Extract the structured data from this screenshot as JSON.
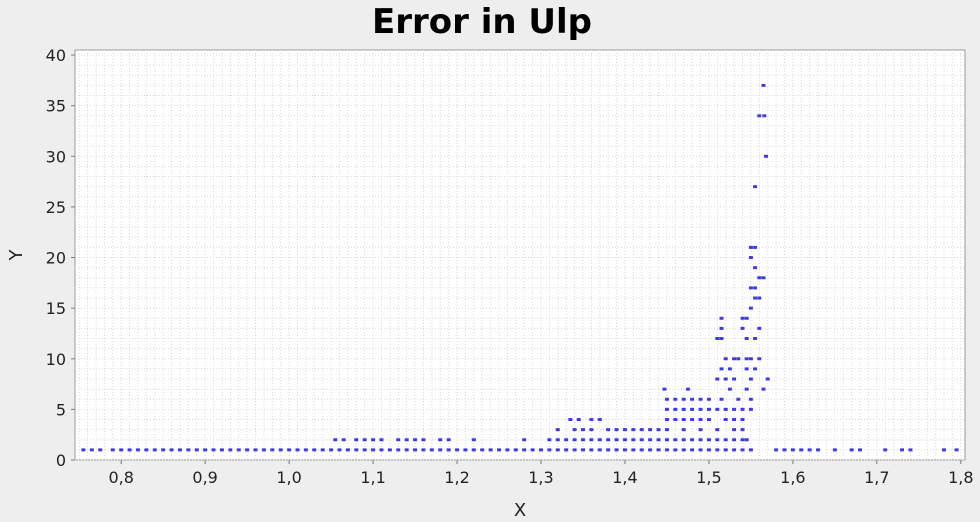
{
  "chart_data": {
    "type": "scatter",
    "title": "Error in Ulp",
    "xlabel": "X",
    "ylabel": "Y",
    "xlim": [
      0.745,
      1.805
    ],
    "ylim": [
      0,
      40.5
    ],
    "x_ticks": [
      "0,8",
      "0,9",
      "1,0",
      "1,1",
      "1,2",
      "1,3",
      "1,4",
      "1,5",
      "1,6",
      "1,7",
      "1,8"
    ],
    "x_tick_values": [
      0.8,
      0.9,
      1.0,
      1.1,
      1.2,
      1.3,
      1.4,
      1.5,
      1.6,
      1.7,
      1.8
    ],
    "y_ticks": [
      "0",
      "5",
      "10",
      "15",
      "20",
      "25",
      "30",
      "35",
      "40"
    ],
    "y_tick_values": [
      0,
      5,
      10,
      15,
      20,
      25,
      30,
      35,
      40
    ],
    "grid": true,
    "legend": "none",
    "marker_color": "#0000cc",
    "background_color": "#ffffff",
    "page_color": "#eeeeee",
    "grid_color": "#d8d8d8",
    "series": [
      {
        "points": [
          [
            0.755,
            1
          ],
          [
            0.765,
            1
          ],
          [
            0.775,
            1
          ],
          [
            0.79,
            1
          ],
          [
            0.8,
            1
          ],
          [
            0.81,
            1
          ],
          [
            0.82,
            1
          ],
          [
            0.83,
            1
          ],
          [
            0.84,
            1
          ],
          [
            0.85,
            1
          ],
          [
            0.86,
            1
          ],
          [
            0.87,
            1
          ],
          [
            0.88,
            1
          ],
          [
            0.89,
            1
          ],
          [
            0.9,
            1
          ],
          [
            0.91,
            1
          ],
          [
            0.92,
            1
          ],
          [
            0.93,
            1
          ],
          [
            0.94,
            1
          ],
          [
            0.95,
            1
          ],
          [
            0.96,
            1
          ],
          [
            0.97,
            1
          ],
          [
            0.98,
            1
          ],
          [
            0.99,
            1
          ],
          [
            1.0,
            1
          ],
          [
            1.01,
            1
          ],
          [
            1.02,
            1
          ],
          [
            1.03,
            1
          ],
          [
            1.04,
            1
          ],
          [
            1.05,
            1
          ],
          [
            1.06,
            1
          ],
          [
            1.07,
            1
          ],
          [
            1.08,
            1
          ],
          [
            1.09,
            1
          ],
          [
            1.1,
            1
          ],
          [
            1.11,
            1
          ],
          [
            1.12,
            1
          ],
          [
            1.13,
            1
          ],
          [
            1.14,
            1
          ],
          [
            1.15,
            1
          ],
          [
            1.16,
            1
          ],
          [
            1.17,
            1
          ],
          [
            1.18,
            1
          ],
          [
            1.19,
            1
          ],
          [
            1.2,
            1
          ],
          [
            1.21,
            1
          ],
          [
            1.22,
            1
          ],
          [
            1.23,
            1
          ],
          [
            1.24,
            1
          ],
          [
            1.25,
            1
          ],
          [
            1.26,
            1
          ],
          [
            1.27,
            1
          ],
          [
            1.28,
            1
          ],
          [
            1.29,
            1
          ],
          [
            1.3,
            1
          ],
          [
            1.31,
            1
          ],
          [
            1.32,
            1
          ],
          [
            1.33,
            1
          ],
          [
            1.34,
            1
          ],
          [
            1.35,
            1
          ],
          [
            1.36,
            1
          ],
          [
            1.37,
            1
          ],
          [
            1.38,
            1
          ],
          [
            1.39,
            1
          ],
          [
            1.4,
            1
          ],
          [
            1.41,
            1
          ],
          [
            1.42,
            1
          ],
          [
            1.43,
            1
          ],
          [
            1.44,
            1
          ],
          [
            1.45,
            1
          ],
          [
            1.46,
            1
          ],
          [
            1.47,
            1
          ],
          [
            1.48,
            1
          ],
          [
            1.49,
            1
          ],
          [
            1.5,
            1
          ],
          [
            1.51,
            1
          ],
          [
            1.52,
            1
          ],
          [
            1.53,
            1
          ],
          [
            1.54,
            1
          ],
          [
            1.55,
            1
          ],
          [
            1.58,
            1
          ],
          [
            1.59,
            1
          ],
          [
            1.6,
            1
          ],
          [
            1.61,
            1
          ],
          [
            1.62,
            1
          ],
          [
            1.63,
            1
          ],
          [
            1.65,
            1
          ],
          [
            1.67,
            1
          ],
          [
            1.68,
            1
          ],
          [
            1.71,
            1
          ],
          [
            1.73,
            1
          ],
          [
            1.74,
            1
          ],
          [
            1.78,
            1
          ],
          [
            1.795,
            1
          ],
          [
            1.055,
            2
          ],
          [
            1.065,
            2
          ],
          [
            1.08,
            2
          ],
          [
            1.09,
            2
          ],
          [
            1.1,
            2
          ],
          [
            1.11,
            2
          ],
          [
            1.13,
            2
          ],
          [
            1.14,
            2
          ],
          [
            1.15,
            2
          ],
          [
            1.16,
            2
          ],
          [
            1.18,
            2
          ],
          [
            1.19,
            2
          ],
          [
            1.22,
            2
          ],
          [
            1.28,
            2
          ],
          [
            1.31,
            2
          ],
          [
            1.32,
            2
          ],
          [
            1.33,
            2
          ],
          [
            1.34,
            2
          ],
          [
            1.35,
            2
          ],
          [
            1.36,
            2
          ],
          [
            1.37,
            2
          ],
          [
            1.38,
            2
          ],
          [
            1.39,
            2
          ],
          [
            1.4,
            2
          ],
          [
            1.41,
            2
          ],
          [
            1.42,
            2
          ],
          [
            1.43,
            2
          ],
          [
            1.44,
            2
          ],
          [
            1.45,
            2
          ],
          [
            1.46,
            2
          ],
          [
            1.47,
            2
          ],
          [
            1.48,
            2
          ],
          [
            1.49,
            2
          ],
          [
            1.5,
            2
          ],
          [
            1.51,
            2
          ],
          [
            1.52,
            2
          ],
          [
            1.53,
            2
          ],
          [
            1.54,
            2
          ],
          [
            1.545,
            2
          ],
          [
            1.32,
            3
          ],
          [
            1.34,
            3
          ],
          [
            1.35,
            3
          ],
          [
            1.36,
            3
          ],
          [
            1.38,
            3
          ],
          [
            1.39,
            3
          ],
          [
            1.4,
            3
          ],
          [
            1.41,
            3
          ],
          [
            1.42,
            3
          ],
          [
            1.43,
            3
          ],
          [
            1.44,
            3
          ],
          [
            1.45,
            3
          ],
          [
            1.47,
            3
          ],
          [
            1.49,
            3
          ],
          [
            1.51,
            3
          ],
          [
            1.53,
            3
          ],
          [
            1.54,
            3
          ],
          [
            1.335,
            4
          ],
          [
            1.345,
            4
          ],
          [
            1.36,
            4
          ],
          [
            1.37,
            4
          ],
          [
            1.45,
            4
          ],
          [
            1.46,
            4
          ],
          [
            1.47,
            4
          ],
          [
            1.48,
            4
          ],
          [
            1.49,
            4
          ],
          [
            1.5,
            4
          ],
          [
            1.52,
            4
          ],
          [
            1.53,
            4
          ],
          [
            1.54,
            4
          ],
          [
            1.45,
            5
          ],
          [
            1.46,
            5
          ],
          [
            1.47,
            5
          ],
          [
            1.48,
            5
          ],
          [
            1.49,
            5
          ],
          [
            1.5,
            5
          ],
          [
            1.51,
            5
          ],
          [
            1.52,
            5
          ],
          [
            1.53,
            5
          ],
          [
            1.54,
            5
          ],
          [
            1.55,
            5
          ],
          [
            1.45,
            6
          ],
          [
            1.46,
            6
          ],
          [
            1.47,
            6
          ],
          [
            1.48,
            6
          ],
          [
            1.49,
            6
          ],
          [
            1.5,
            6
          ],
          [
            1.515,
            6
          ],
          [
            1.535,
            6
          ],
          [
            1.55,
            6
          ],
          [
            1.447,
            7
          ],
          [
            1.475,
            7
          ],
          [
            1.525,
            7
          ],
          [
            1.545,
            7
          ],
          [
            1.565,
            7
          ],
          [
            1.51,
            8
          ],
          [
            1.52,
            8
          ],
          [
            1.53,
            8
          ],
          [
            1.55,
            8
          ],
          [
            1.57,
            8
          ],
          [
            1.515,
            9
          ],
          [
            1.525,
            9
          ],
          [
            1.545,
            9
          ],
          [
            1.555,
            9
          ],
          [
            1.52,
            10
          ],
          [
            1.53,
            10
          ],
          [
            1.535,
            10
          ],
          [
            1.545,
            10
          ],
          [
            1.55,
            10
          ],
          [
            1.56,
            10
          ],
          [
            1.51,
            12
          ],
          [
            1.515,
            12
          ],
          [
            1.545,
            12
          ],
          [
            1.555,
            12
          ],
          [
            1.515,
            13
          ],
          [
            1.54,
            13
          ],
          [
            1.56,
            13
          ],
          [
            1.515,
            14
          ],
          [
            1.54,
            14
          ],
          [
            1.545,
            14
          ],
          [
            1.55,
            15
          ],
          [
            1.555,
            16
          ],
          [
            1.56,
            16
          ],
          [
            1.55,
            17
          ],
          [
            1.555,
            17
          ],
          [
            1.56,
            18
          ],
          [
            1.565,
            18
          ],
          [
            1.555,
            19
          ],
          [
            1.55,
            20
          ],
          [
            1.55,
            21
          ],
          [
            1.555,
            21
          ],
          [
            1.555,
            27
          ],
          [
            1.568,
            30
          ],
          [
            1.56,
            34
          ],
          [
            1.566,
            34
          ],
          [
            1.565,
            37
          ]
        ]
      }
    ]
  }
}
